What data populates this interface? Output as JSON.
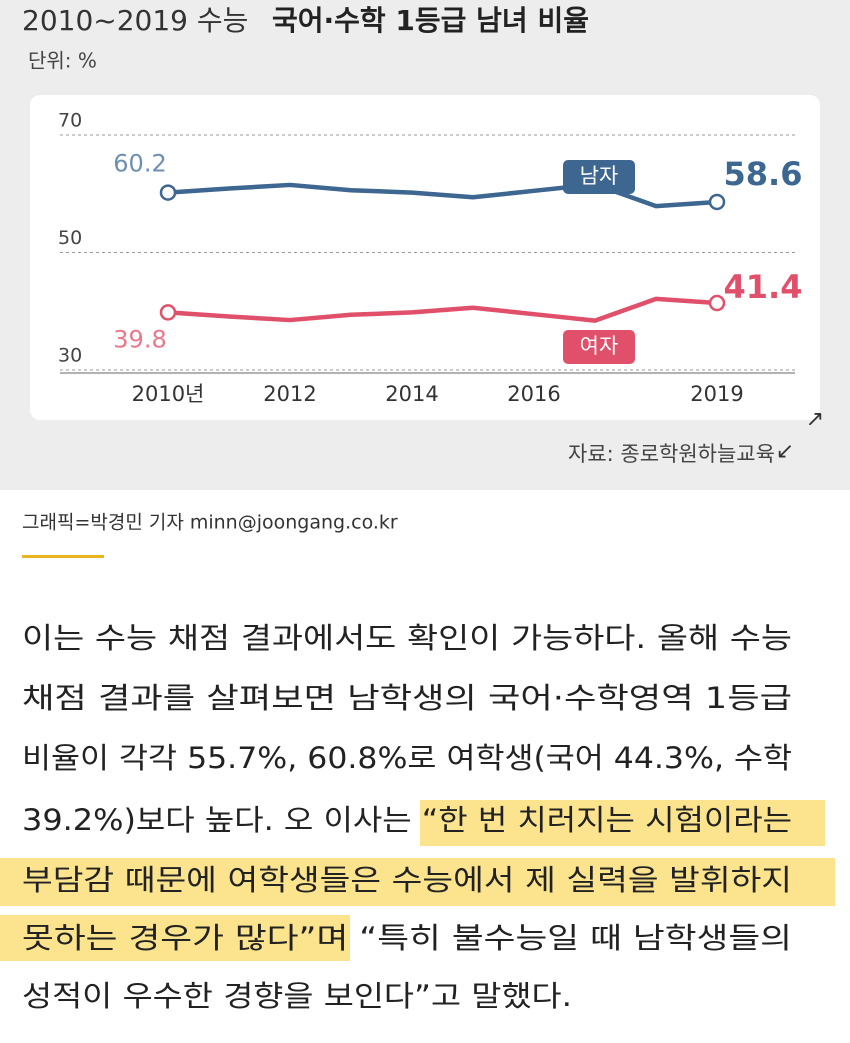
{
  "chart_data": {
    "type": "line",
    "title": [
      "2010~2019 수능",
      "국어·수학 1등급 남녀 비율"
    ],
    "unit": "단위: %",
    "source": "자료: 종로학원하늘교육",
    "categories": [
      "2010년",
      null,
      "2012",
      null,
      "2014",
      null,
      "2016",
      null,
      null,
      "2019"
    ],
    "series": [
      {
        "name": "남자",
        "color": "#3d6690",
        "values": [
          60.2,
          60.9,
          61.5,
          60.6,
          60.2,
          59.4,
          60.5,
          61.6,
          57.9,
          58.6
        ]
      },
      {
        "name": "여자",
        "color": "#e0506a",
        "values": [
          39.8,
          39.1,
          38.5,
          39.4,
          39.8,
          40.6,
          39.5,
          38.4,
          42.1,
          41.4
        ]
      }
    ],
    "ylim": [
      30,
      70
    ],
    "yticks": [
      30,
      50,
      70
    ],
    "grid": true
  },
  "caption": "그래픽=박경민 기자 minn@joongang.co.kr",
  "article": [
    "이는 수능 채점 결과에서도 확인이 가능하다. 올해 수능",
    "채점 결과를 살펴보면 남학생의 국어·수학영역 1등급",
    "비율이 각각 55.7%, 60.8%로 여학생(국어 44.3%, 수학",
    "39.2%)보다 높다. 오 이사는 “한 번 치러지는 시험이라는",
    "부담감 때문에 여학생들은 수능에서 제 실력을 발휘하지",
    "못하는 경우가 많다”며 “특히 불수능일 때 남학생들의",
    "성적이 우수한 경향을 보인다”고 말했다."
  ]
}
